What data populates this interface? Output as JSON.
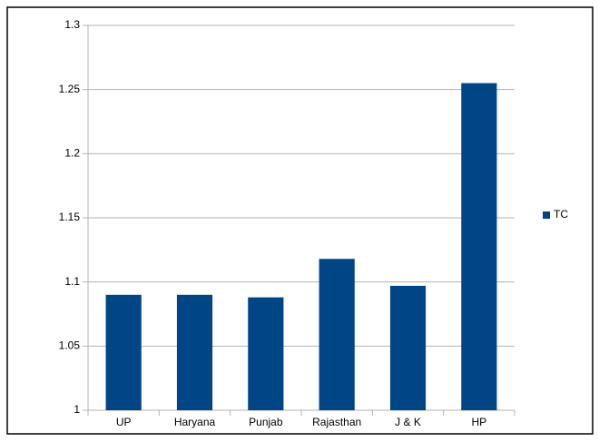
{
  "chart_data": {
    "type": "bar",
    "categories": [
      "UP",
      "Haryana",
      "Punjab",
      "Rajasthan",
      "J & K",
      "HP"
    ],
    "series": [
      {
        "name": "TC",
        "color": "#004586",
        "values": [
          1.09,
          1.09,
          1.088,
          1.118,
          1.097,
          1.255
        ]
      }
    ],
    "ylim": [
      1,
      1.3
    ],
    "yticks": [
      1,
      1.05,
      1.1,
      1.15,
      1.2,
      1.25,
      1.3
    ],
    "grid": true,
    "legend": "right"
  }
}
